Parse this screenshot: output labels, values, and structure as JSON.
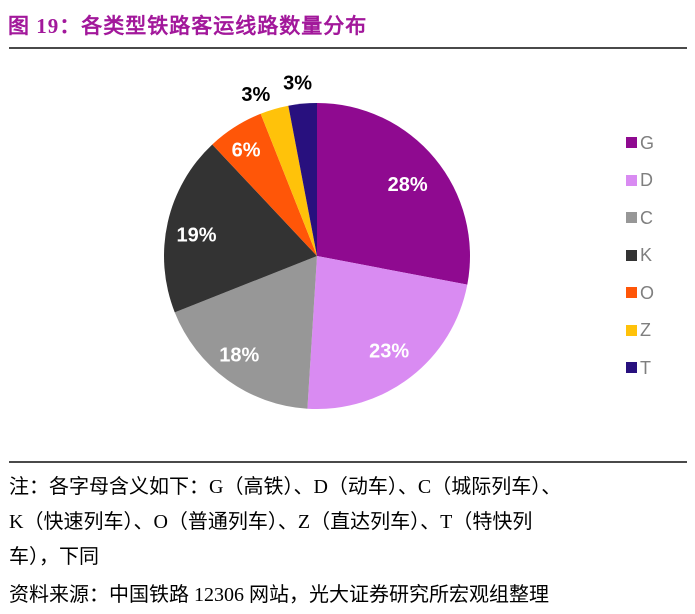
{
  "header": {
    "title": "图 19：各类型铁路客运线路数量分布",
    "title_color": "#A2189B"
  },
  "chart_data": {
    "type": "pie",
    "title": "各类型铁路客运线路数量分布",
    "legend_position": "right",
    "start_angle_deg": 0,
    "direction": "clockwise",
    "series": [
      {
        "name": "G",
        "value": 28,
        "color": "#8F0A90"
      },
      {
        "name": "D",
        "value": 23,
        "color": "#D98BF2"
      },
      {
        "name": "C",
        "value": 18,
        "color": "#979797"
      },
      {
        "name": "K",
        "value": 19,
        "color": "#333333"
      },
      {
        "name": "O",
        "value": 6,
        "color": "#FF5608"
      },
      {
        "name": "Z",
        "value": 3,
        "color": "#FFC20A"
      },
      {
        "name": "T",
        "value": 3,
        "color": "#28107E"
      }
    ],
    "labels": [
      "28%",
      "23%",
      "18%",
      "19%",
      "6%",
      "3%",
      "3%"
    ]
  },
  "notes": {
    "lines": [
      "注：各字母含义如下：G（高铁）、D（动车）、C（城际列车）、",
      "K（快速列车）、O（普通列车）、Z（直达列车）、T（特快列",
      "车），下同"
    ],
    "source": "资料来源：中国铁路 12306 网站，光大证券研究所宏观组整理"
  }
}
